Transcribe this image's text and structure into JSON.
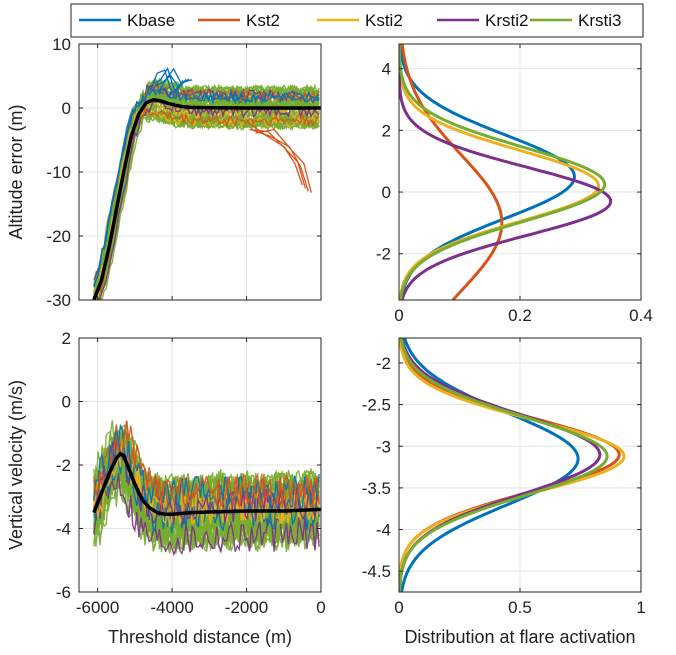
{
  "legend": {
    "placement": "top",
    "entries": [
      {
        "name": "Kbase",
        "color": "#0072BD"
      },
      {
        "name": "Kst2",
        "color": "#D95319"
      },
      {
        "name": "Ksti2",
        "color": "#EDB120"
      },
      {
        "name": "Krsti2",
        "color": "#7E2F8E"
      },
      {
        "name": "Krsti3",
        "color": "#77AC30"
      }
    ]
  },
  "chart_data": [
    {
      "id": "altitude-trajectories",
      "type": "line",
      "ylabel": "Altitude error (m)",
      "xlabel": "",
      "xlim": [
        -6500,
        0
      ],
      "ylim": [
        -30,
        10
      ],
      "xticks": [
        -6000,
        -4000,
        -2000,
        0
      ],
      "yticks": [
        -30,
        -20,
        -10,
        0,
        10
      ],
      "xtick_labels": [],
      "ytick_labels": [
        "-30",
        "-20",
        "-10",
        "0",
        "10"
      ],
      "grid": true,
      "mean_curve": {
        "color": "#000000",
        "x": [
          -6100,
          -5900,
          -5700,
          -5500,
          -5300,
          -5100,
          -4900,
          -4700,
          -4500,
          -4300,
          -4100,
          -3900,
          -3700,
          -3500,
          -3000,
          -2500,
          -2000,
          -1500,
          -1000,
          -500,
          0
        ],
        "y": [
          -30,
          -27,
          -22,
          -16,
          -10,
          -4.5,
          -1.0,
          0.8,
          1.3,
          1.1,
          0.7,
          0.4,
          0.2,
          0.1,
          0.05,
          0.02,
          0.0,
          0.0,
          0.0,
          0.0,
          0.0
        ]
      },
      "band": {
        "color": "#77AC30",
        "upper_offset": 3.5,
        "lower_offset": 3.5
      },
      "series": [
        {
          "name": "Kst2",
          "color": "#D95319",
          "x": [
            -2000,
            -1500,
            -1000,
            -700,
            -500
          ],
          "y": [
            -3,
            -4,
            -6,
            -9,
            -12.5
          ]
        },
        {
          "name": "Kbase",
          "color": "#0072BD",
          "x": [
            -4600,
            -4400,
            -4200,
            -4000,
            -3700
          ],
          "y": [
            3,
            5,
            5.5,
            3,
            4
          ]
        }
      ]
    },
    {
      "id": "altitude-distribution",
      "type": "line",
      "xlabel": "",
      "ylabel": "",
      "xlim": [
        0,
        0.4
      ],
      "ylim": [
        -3.5,
        4.8
      ],
      "xticks": [
        0,
        0.2,
        0.4
      ],
      "yticks": [
        -2,
        0,
        2,
        4
      ],
      "xtick_labels": [
        "0",
        "0.2",
        "0.4"
      ],
      "ytick_labels": [
        "-2",
        "0",
        "2",
        "4"
      ],
      "grid": true,
      "series": [
        {
          "name": "Kbase",
          "color": "#0072BD",
          "mean": 0.5,
          "sd": 1.35,
          "peak": 0.29
        },
        {
          "name": "Kst2",
          "color": "#D95319",
          "mean": -1.0,
          "sd": 2.2,
          "peak": 0.17
        },
        {
          "name": "Ksti2",
          "color": "#EDB120",
          "mean": 0.2,
          "sd": 1.15,
          "peak": 0.33
        },
        {
          "name": "Krsti2",
          "color": "#7E2F8E",
          "mean": -0.3,
          "sd": 1.1,
          "peak": 0.35
        },
        {
          "name": "Krsti3",
          "color": "#77AC30",
          "mean": 0.25,
          "sd": 1.2,
          "peak": 0.34
        }
      ]
    },
    {
      "id": "velocity-trajectories",
      "type": "line",
      "xlabel": "Threshold distance (m)",
      "ylabel": "Vertical velocity (m/s)",
      "xlim": [
        -6500,
        0
      ],
      "ylim": [
        -6,
        2
      ],
      "xticks": [
        -6000,
        -4000,
        -2000,
        0
      ],
      "yticks": [
        -6,
        -4,
        -2,
        0,
        2
      ],
      "xtick_labels": [
        "-6000",
        "-4000",
        "-2000",
        "0"
      ],
      "ytick_labels": [
        "-6",
        "-4",
        "-2",
        "0",
        "2"
      ],
      "grid": true,
      "mean_curve": {
        "color": "#000000",
        "x": [
          -6100,
          -5900,
          -5700,
          -5500,
          -5400,
          -5300,
          -5200,
          -5000,
          -4800,
          -4600,
          -4400,
          -4200,
          -4000,
          -3500,
          -3000,
          -2000,
          -1000,
          0
        ],
        "y": [
          -3.5,
          -2.9,
          -2.3,
          -1.8,
          -1.65,
          -1.7,
          -2.0,
          -2.6,
          -3.1,
          -3.35,
          -3.5,
          -3.55,
          -3.55,
          -3.5,
          -3.48,
          -3.45,
          -3.45,
          -3.4
        ]
      },
      "band": {
        "color": "#77AC30",
        "upper_offset": 1.0,
        "lower_offset": 1.0
      },
      "series": []
    },
    {
      "id": "velocity-distribution",
      "type": "line",
      "xlabel": "Distribution at flare activation",
      "ylabel": "",
      "xlim": [
        0,
        1
      ],
      "ylim": [
        -4.75,
        -1.7
      ],
      "xticks": [
        0,
        0.5,
        1
      ],
      "yticks": [
        -4.5,
        -4,
        -3.5,
        -3,
        -2.5,
        -2
      ],
      "xtick_labels": [
        "0",
        "0.5",
        "1"
      ],
      "ytick_labels": [
        "-4.5",
        "-4",
        "-3.5",
        "-3",
        "-2.5",
        "-2"
      ],
      "grid": true,
      "series": [
        {
          "name": "Kbase",
          "color": "#0072BD",
          "mean": -3.15,
          "sd": 0.55,
          "peak": 0.74
        },
        {
          "name": "Kst2",
          "color": "#D95319",
          "mean": -3.1,
          "sd": 0.44,
          "peak": 0.91
        },
        {
          "name": "Ksti2",
          "color": "#EDB120",
          "mean": -3.12,
          "sd": 0.43,
          "peak": 0.93
        },
        {
          "name": "Krsti2",
          "color": "#7E2F8E",
          "mean": -3.1,
          "sd": 0.48,
          "peak": 0.83
        },
        {
          "name": "Krsti3",
          "color": "#77AC30",
          "mean": -3.12,
          "sd": 0.47,
          "peak": 0.86
        }
      ]
    }
  ]
}
